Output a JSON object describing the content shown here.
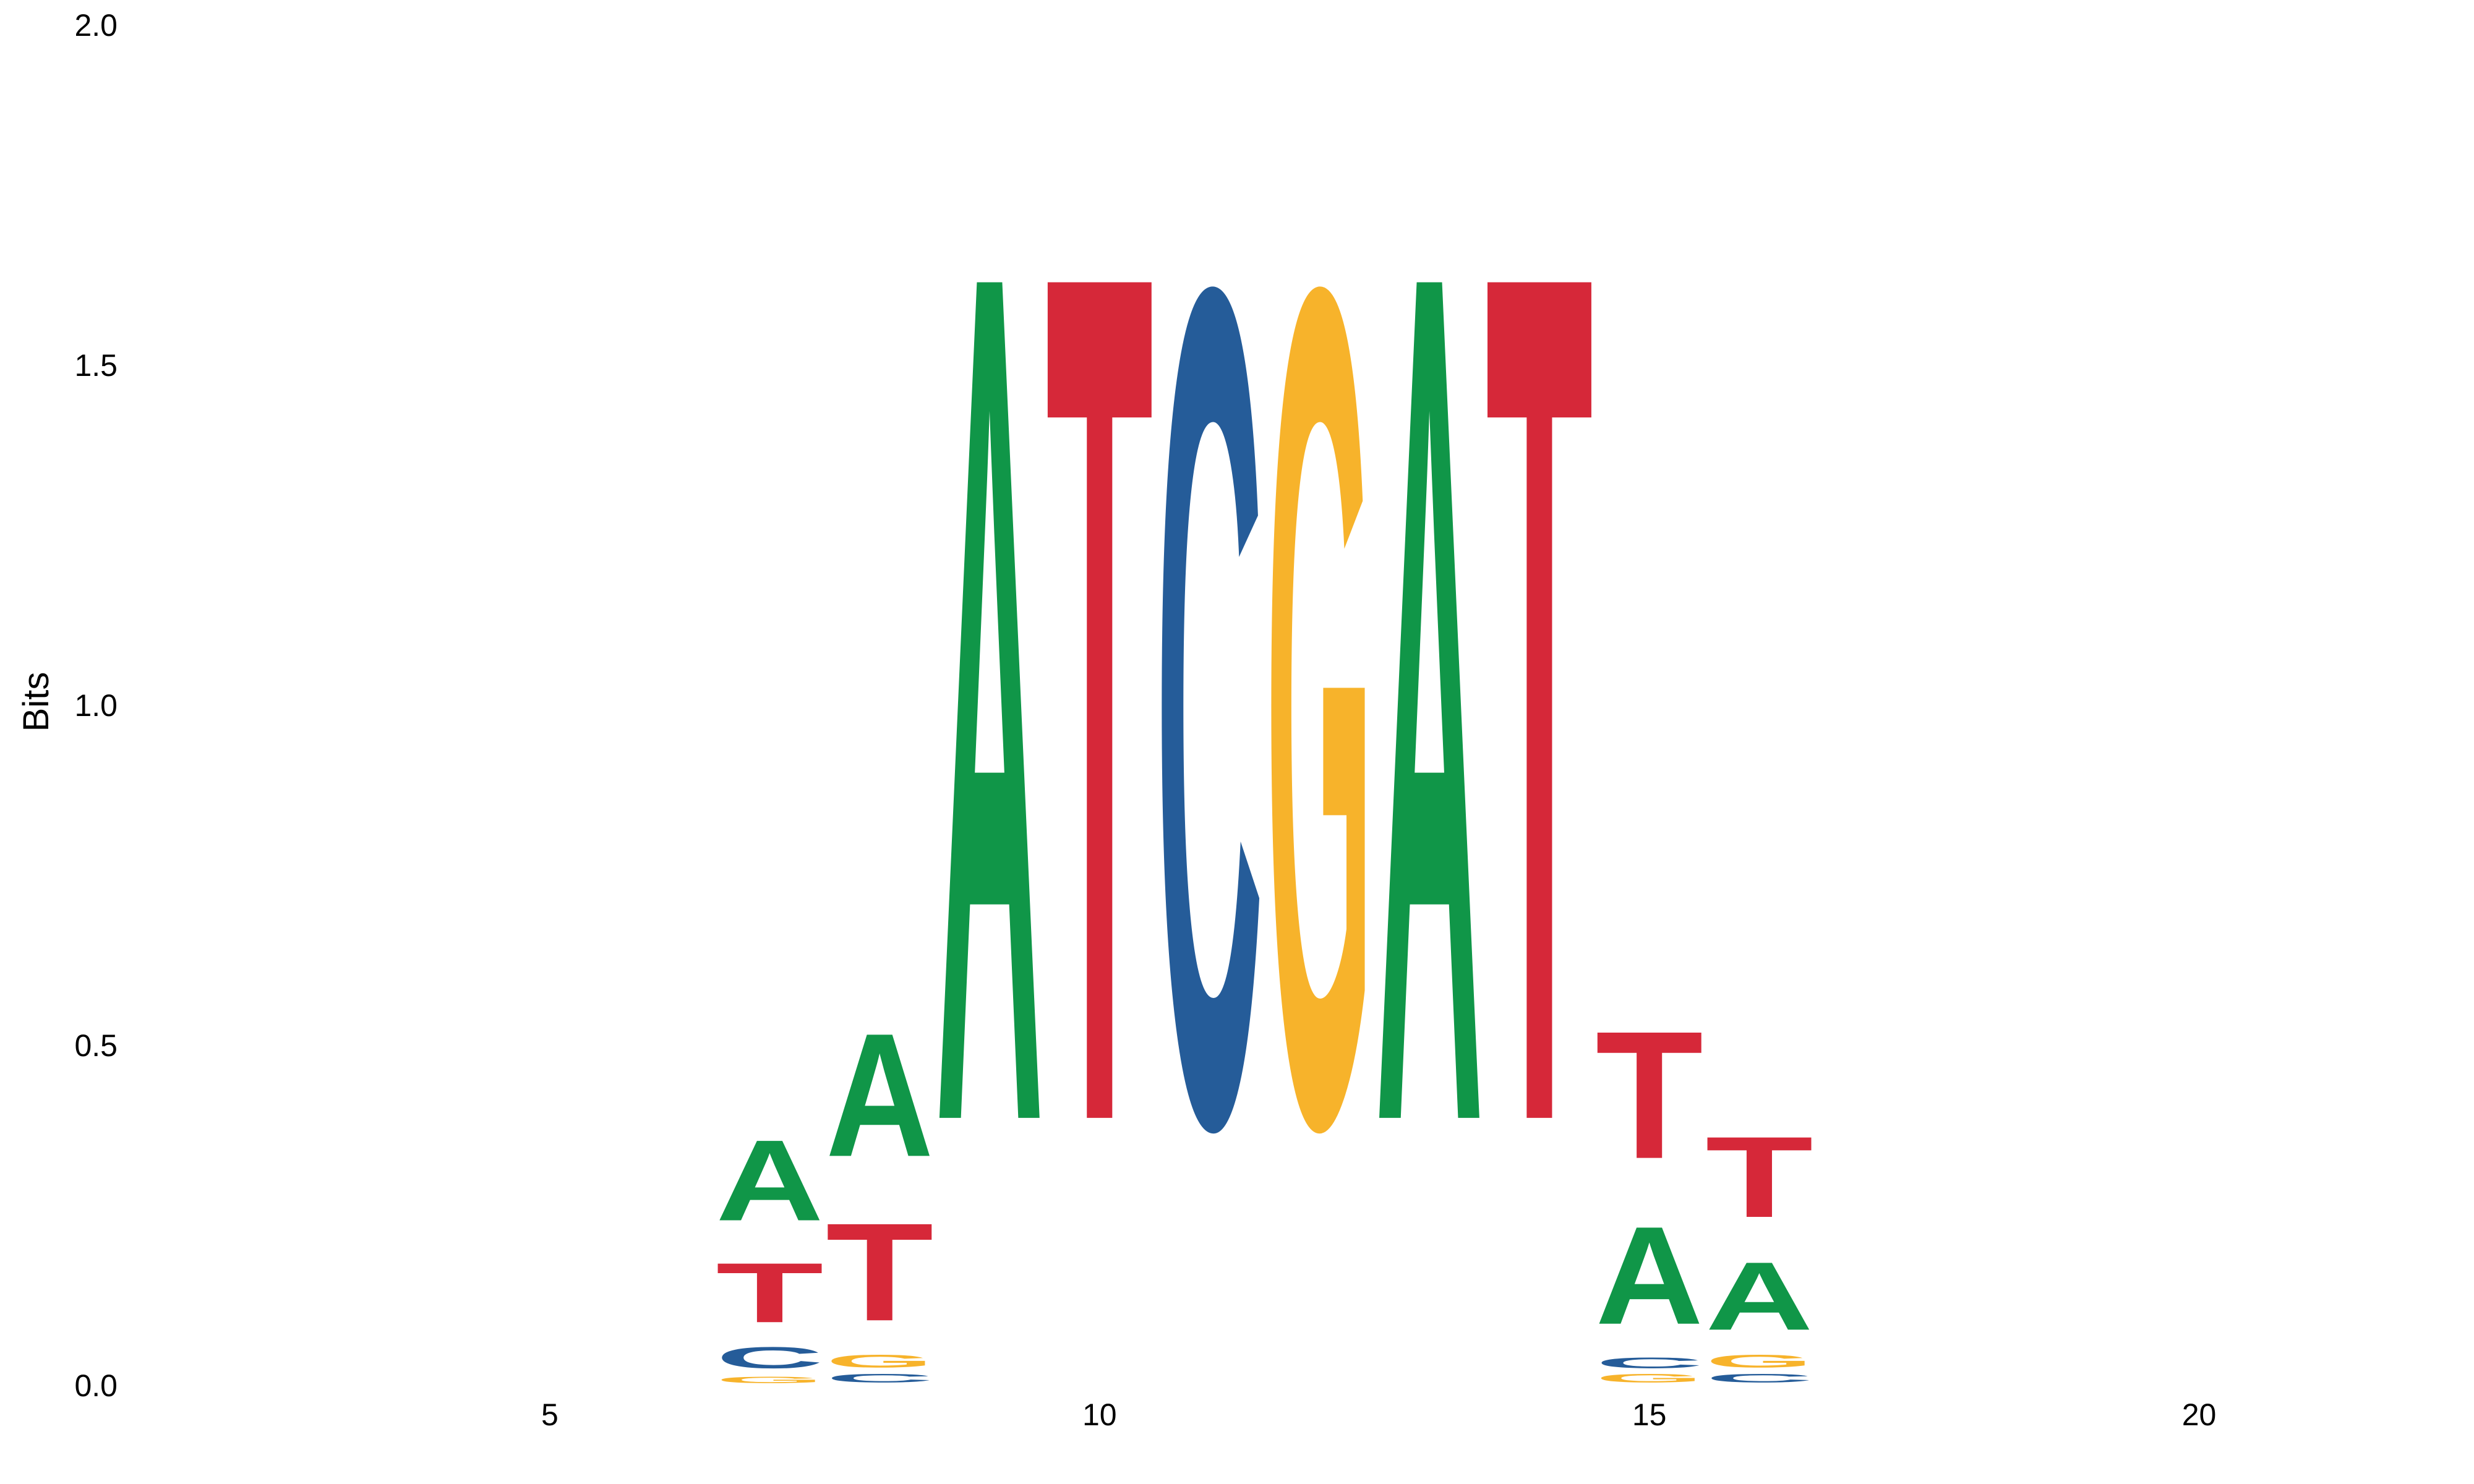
{
  "chart_data": {
    "type": "sequence-logo",
    "title": "",
    "xlabel": "",
    "ylabel": "Bits",
    "ylim": [
      0,
      2
    ],
    "xlim": [
      0,
      22.5
    ],
    "yticks": [
      "0.0",
      "0.5",
      "1.0",
      "1.5",
      "2.0"
    ],
    "xticks": [
      "5",
      "10",
      "15",
      "20"
    ],
    "grid": false,
    "colors": {
      "A": "#109648",
      "C": "#255C99",
      "G": "#F7B32B",
      "T": "#D62839"
    },
    "positions": [
      {
        "pos": 7,
        "stack": [
          {
            "letter": "G",
            "bits": 0.015
          },
          {
            "letter": "C",
            "bits": 0.05
          },
          {
            "letter": "T",
            "bits": 0.14
          },
          {
            "letter": "A",
            "bits": 0.19
          }
        ]
      },
      {
        "pos": 8,
        "stack": [
          {
            "letter": "C",
            "bits": 0.02
          },
          {
            "letter": "G",
            "bits": 0.03
          },
          {
            "letter": "T",
            "bits": 0.23
          },
          {
            "letter": "A",
            "bits": 0.29
          }
        ]
      },
      {
        "pos": 9,
        "stack": [
          {
            "letter": "A",
            "bits": 2.0
          }
        ]
      },
      {
        "pos": 10,
        "stack": [
          {
            "letter": "T",
            "bits": 2.0
          }
        ]
      },
      {
        "pos": 11,
        "stack": [
          {
            "letter": "C",
            "bits": 1.97
          }
        ]
      },
      {
        "pos": 12,
        "stack": [
          {
            "letter": "G",
            "bits": 1.97
          }
        ]
      },
      {
        "pos": 13,
        "stack": [
          {
            "letter": "A",
            "bits": 2.0
          }
        ]
      },
      {
        "pos": 14,
        "stack": [
          {
            "letter": "T",
            "bits": 2.0
          }
        ]
      },
      {
        "pos": 15,
        "stack": [
          {
            "letter": "G",
            "bits": 0.02
          },
          {
            "letter": "C",
            "bits": 0.025
          },
          {
            "letter": "A",
            "bits": 0.23
          },
          {
            "letter": "T",
            "bits": 0.3
          }
        ]
      },
      {
        "pos": 16,
        "stack": [
          {
            "letter": "C",
            "bits": 0.02
          },
          {
            "letter": "G",
            "bits": 0.03
          },
          {
            "letter": "A",
            "bits": 0.16
          },
          {
            "letter": "T",
            "bits": 0.19
          }
        ]
      }
    ]
  }
}
